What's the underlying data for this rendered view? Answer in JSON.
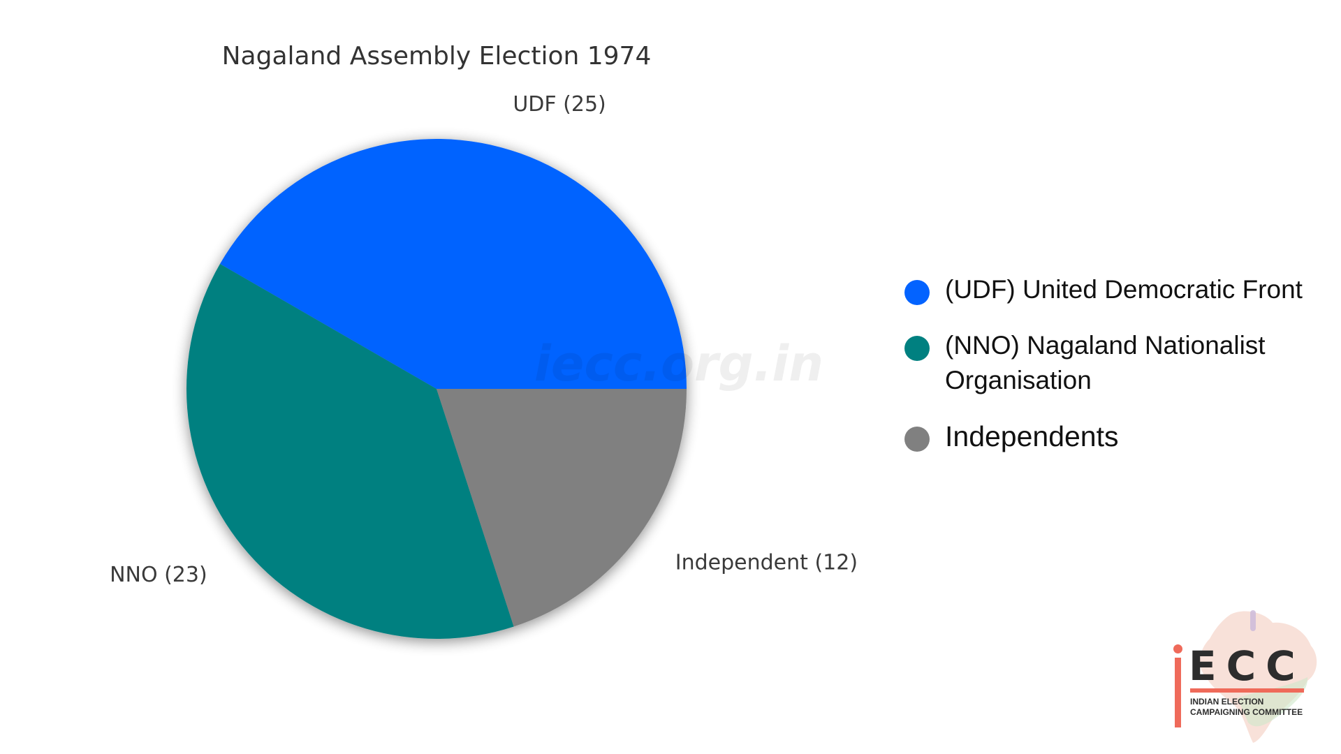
{
  "chart_data": {
    "type": "pie",
    "title": "Nagaland Assembly Election 1974",
    "slices": [
      {
        "label": "UDF (25)",
        "value": 25,
        "color": "#0363ff"
      },
      {
        "label": "NNO (23)",
        "value": 23,
        "color": "#008080"
      },
      {
        "label": "Independent (12)",
        "value": 12,
        "color": "#808080"
      }
    ],
    "legend": {
      "placement": "right",
      "items": [
        {
          "label": "(UDF) United Democratic Front",
          "color": "#0363ff"
        },
        {
          "label": "(NNO) Nagaland Nationalist Organisation",
          "color": "#008080"
        },
        {
          "label": "Independents",
          "color": "#808080"
        }
      ]
    }
  },
  "watermark": "iecc.org.in",
  "logo": {
    "mark": "ECC",
    "line1": "INDIAN ELECTION",
    "line2": "CAMPAIGNING COMMITTEE"
  }
}
